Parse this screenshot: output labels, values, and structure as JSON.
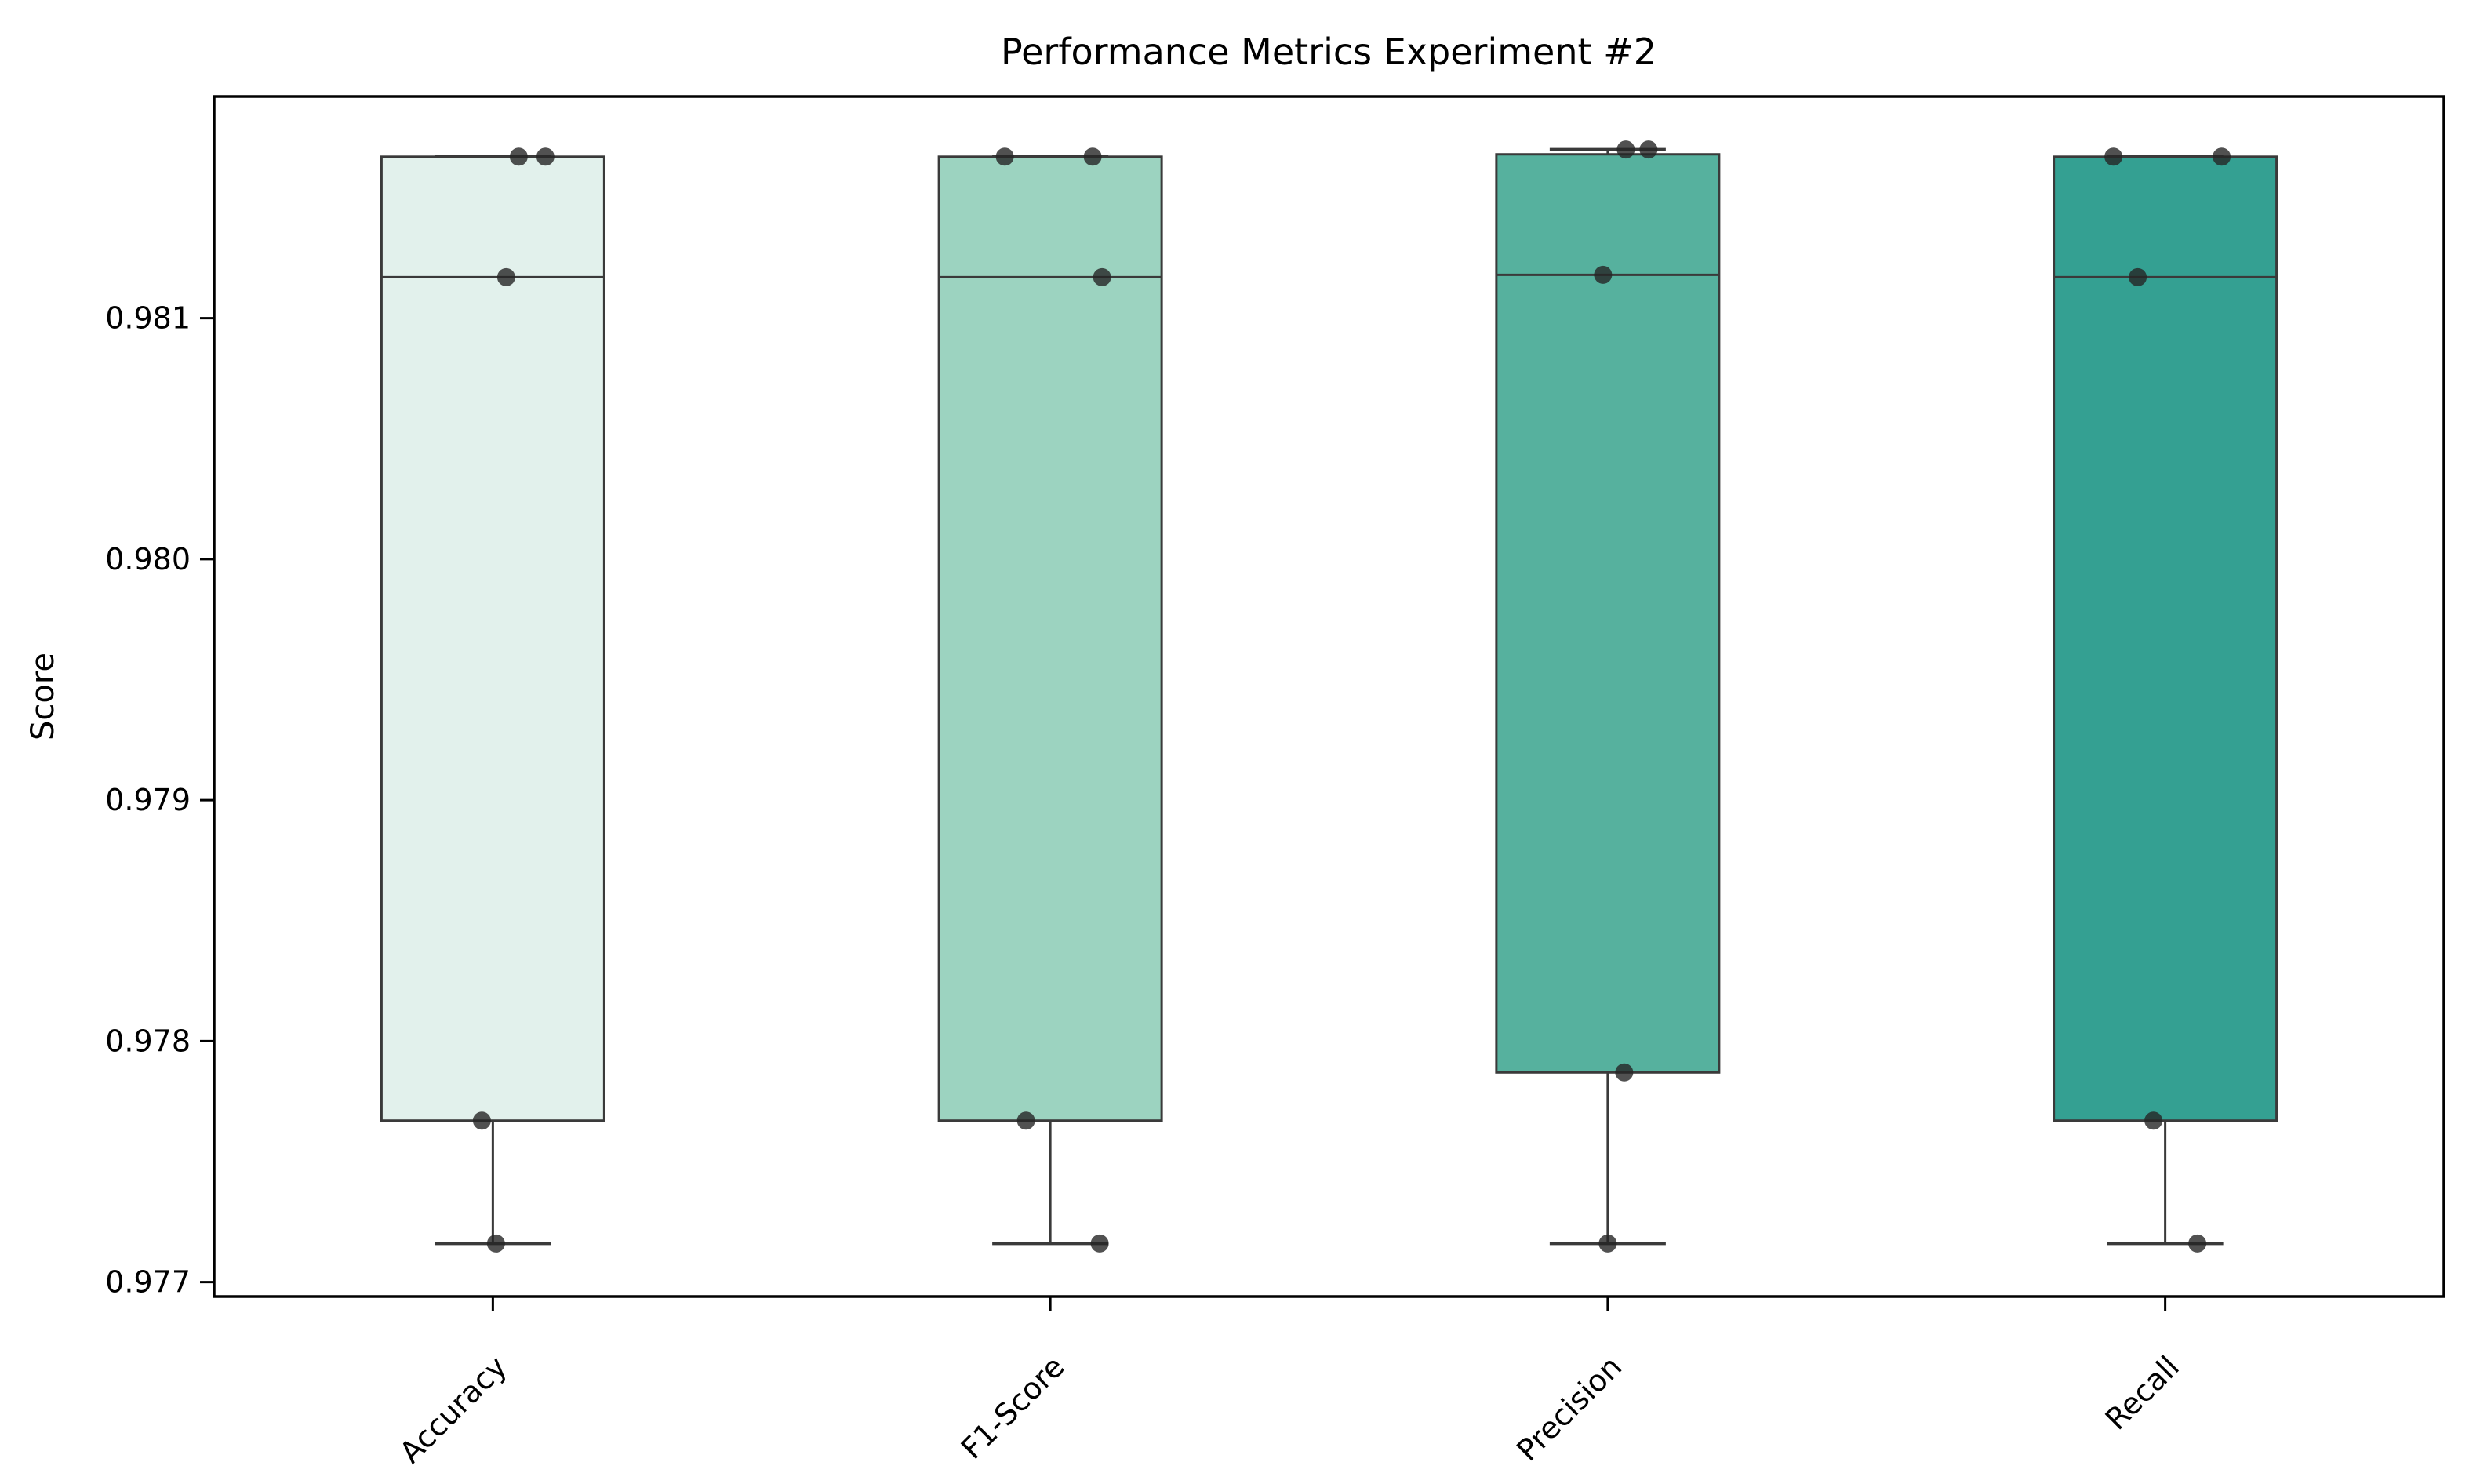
{
  "title": "Performance Metrics Experiment #2",
  "background_color": "#ffffff",
  "chart_data": {
    "type": "box",
    "title": "Performance Metrics Experiment #2",
    "xlabel": "",
    "ylabel": "Score",
    "ylim": [
      0.97694,
      0.98192
    ],
    "grid": false,
    "legend": "none",
    "categories": [
      "Accuracy",
      "F1-Score",
      "Precision",
      "Recall"
    ],
    "yticks": [
      {
        "value": 0.981,
        "label": "0.981"
      },
      {
        "value": 0.98,
        "label": "0.980"
      },
      {
        "value": 0.979,
        "label": "0.979"
      },
      {
        "value": 0.978,
        "label": "0.978"
      },
      {
        "value": 0.977,
        "label": "0.977"
      }
    ],
    "series": [
      {
        "name": "Accuracy",
        "fill": "#e2f1ec",
        "whislo": 0.97716,
        "q1": 0.97767,
        "med": 0.98117,
        "q3": 0.98167,
        "whishi": 0.98167,
        "points": [
          {
            "dx": 33,
            "value": 0.98167
          },
          {
            "dx": 67,
            "value": 0.98167
          },
          {
            "dx": 17,
            "value": 0.98117
          },
          {
            "dx": -14,
            "value": 0.97767
          },
          {
            "dx": 4,
            "value": 0.97716
          }
        ]
      },
      {
        "name": "F1-Score",
        "fill": "#9cd3c0",
        "whislo": 0.97716,
        "q1": 0.97767,
        "med": 0.98117,
        "q3": 0.98167,
        "whishi": 0.98167,
        "points": [
          {
            "dx": -58,
            "value": 0.98167
          },
          {
            "dx": 54,
            "value": 0.98167
          },
          {
            "dx": 66,
            "value": 0.98117
          },
          {
            "dx": -31,
            "value": 0.97767
          },
          {
            "dx": 63,
            "value": 0.97716
          }
        ]
      },
      {
        "name": "Precision",
        "fill": "#56b19e",
        "whislo": 0.97716,
        "q1": 0.97787,
        "med": 0.98118,
        "q3": 0.98168,
        "whishi": 0.9817,
        "points": [
          {
            "dx": 23,
            "value": 0.9817
          },
          {
            "dx": 52,
            "value": 0.9817
          },
          {
            "dx": -6,
            "value": 0.98118
          },
          {
            "dx": 21,
            "value": 0.97787
          },
          {
            "dx": 0,
            "value": 0.97716
          }
        ]
      },
      {
        "name": "Recall",
        "fill": "#34a092",
        "whislo": 0.97716,
        "q1": 0.97767,
        "med": 0.98117,
        "q3": 0.98167,
        "whishi": 0.98167,
        "points": [
          {
            "dx": -66,
            "value": 0.98167
          },
          {
            "dx": 72,
            "value": 0.98167
          },
          {
            "dx": -35,
            "value": 0.98117
          },
          {
            "dx": -15,
            "value": 0.97767
          },
          {
            "dx": 41,
            "value": 0.97716
          }
        ]
      }
    ],
    "styles": {
      "box_edge_color": "#3a3a3a",
      "median_color": "#3a3a3a",
      "whisker_color": "#3a3a3a",
      "point_color": "#262626",
      "point_opacity": 0.8,
      "spine_color": "#000000"
    }
  }
}
